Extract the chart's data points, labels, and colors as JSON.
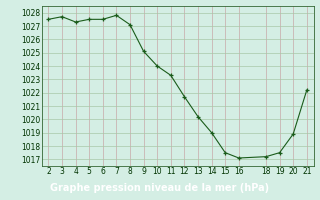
{
  "x": [
    2,
    3,
    4,
    5,
    6,
    7,
    8,
    9,
    10,
    11,
    12,
    13,
    14,
    15,
    16,
    18,
    19,
    20,
    21
  ],
  "y": [
    1027.5,
    1027.7,
    1027.3,
    1027.5,
    1027.5,
    1027.8,
    1027.1,
    1025.1,
    1024.0,
    1023.3,
    1021.7,
    1020.2,
    1019.0,
    1017.5,
    1017.1,
    1017.2,
    1017.5,
    1018.9,
    1022.2
  ],
  "xlim": [
    1.5,
    21.5
  ],
  "ylim": [
    1016.5,
    1028.5
  ],
  "yticks": [
    1017,
    1018,
    1019,
    1020,
    1021,
    1022,
    1023,
    1024,
    1025,
    1026,
    1027,
    1028
  ],
  "xticks": [
    2,
    3,
    4,
    5,
    6,
    7,
    8,
    9,
    10,
    11,
    12,
    13,
    14,
    15,
    16,
    18,
    19,
    20,
    21
  ],
  "line_color": "#1a5c1a",
  "marker_color": "#1a5c1a",
  "bg_color": "#d4eee4",
  "vgrid_color": "#c8a8a8",
  "hgrid_color": "#a8c8a8",
  "xlabel": "Graphe pression niveau de la mer (hPa)",
  "xlabel_bg": "#5588bb",
  "tick_fontsize": 5.5,
  "label_fontsize": 7.0
}
